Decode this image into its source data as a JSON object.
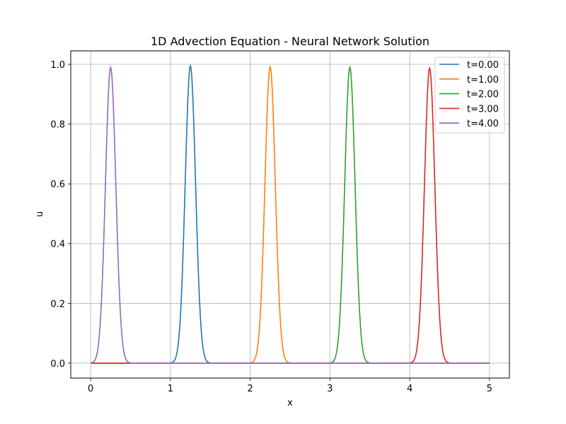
{
  "chart_data": {
    "type": "line",
    "title": "1D Advection Equation - Neural Network Solution",
    "xlabel": "x",
    "ylabel": "u",
    "xlim": [
      -0.25,
      5.25
    ],
    "ylim": [
      -0.05,
      1.045
    ],
    "xticks": [
      "0",
      "1",
      "2",
      "3",
      "4",
      "5"
    ],
    "yticks": [
      "0.0",
      "0.2",
      "0.4",
      "0.6",
      "0.8",
      "1.0"
    ],
    "grid": true,
    "legend_position": "top-right",
    "series": [
      {
        "name": "t=0.00",
        "color": "#1f77b4",
        "center": 1.25,
        "sigma": 0.065,
        "peak": 0.995
      },
      {
        "name": "t=1.00",
        "color": "#ff7f0e",
        "center": 2.25,
        "sigma": 0.065,
        "peak": 0.992
      },
      {
        "name": "t=2.00",
        "color": "#2ca02c",
        "center": 3.25,
        "sigma": 0.065,
        "peak": 0.99
      },
      {
        "name": "t=3.00",
        "color": "#d62728",
        "center": 4.25,
        "sigma": 0.065,
        "peak": 0.987
      },
      {
        "name": "t=4.00",
        "color": "#9467bd",
        "center": 0.25,
        "sigma": 0.065,
        "peak": 0.99
      }
    ],
    "x_range": [
      0,
      5
    ]
  }
}
